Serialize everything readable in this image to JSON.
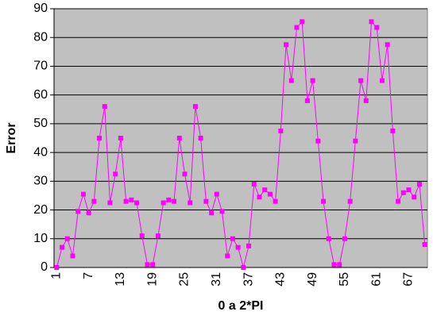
{
  "chart_data": {
    "type": "line",
    "x_label": "0 a 2*PI",
    "y_label": "Error",
    "categories": [
      "1",
      null,
      null,
      null,
      null,
      null,
      "7",
      null,
      null,
      null,
      null,
      null,
      "13",
      null,
      null,
      null,
      null,
      null,
      "19",
      null,
      null,
      null,
      null,
      null,
      "25",
      null,
      null,
      null,
      null,
      null,
      "31",
      null,
      null,
      null,
      null,
      null,
      "37",
      null,
      null,
      null,
      null,
      null,
      "43",
      null,
      null,
      null,
      null,
      null,
      "49",
      null,
      null,
      null,
      null,
      null,
      "55",
      null,
      null,
      null,
      null,
      null,
      "61",
      null,
      null,
      null,
      null,
      null,
      "67",
      null,
      null,
      null
    ],
    "series": [
      {
        "name": "Error",
        "color": "#ff00ff",
        "values": [
          0,
          7,
          10,
          4,
          19.5,
          25.5,
          19,
          23,
          45,
          56,
          22.5,
          32.5,
          45,
          23,
          23.5,
          22.5,
          11,
          1,
          1,
          11,
          22.5,
          23.5,
          23,
          45,
          32.5,
          22.5,
          56,
          45,
          23,
          19,
          25.5,
          19.5,
          4,
          10,
          7,
          0,
          7.5,
          29,
          24.5,
          27,
          25.5,
          23,
          47.5,
          77.5,
          65,
          83.5,
          85.5,
          58,
          65,
          44,
          23,
          10,
          1,
          1,
          10,
          23,
          44,
          65,
          58,
          85.5,
          83.5,
          65,
          77.5,
          47.5,
          23,
          26,
          27,
          24.5,
          29,
          8
        ]
      }
    ],
    "ylim": [
      0,
      90
    ],
    "yticks": [
      0,
      10,
      20,
      30,
      40,
      50,
      60,
      70,
      80,
      90
    ],
    "grid": true,
    "plot_background": "#c0c0c0"
  }
}
